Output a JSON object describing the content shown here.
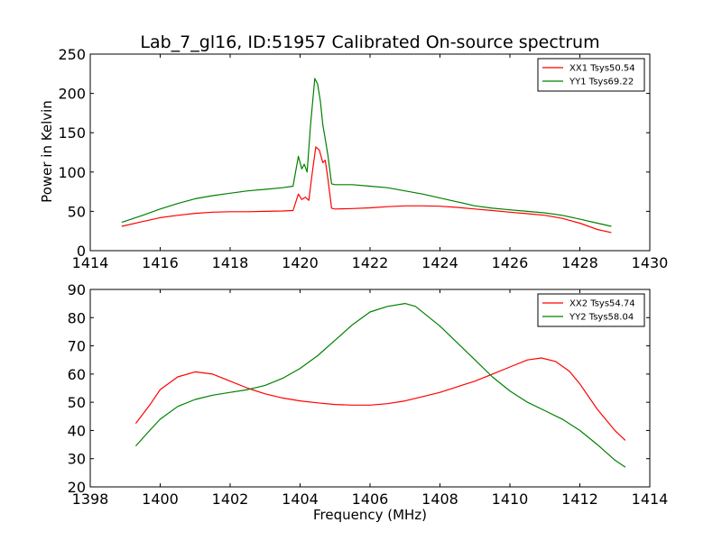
{
  "chart_data": [
    {
      "type": "line",
      "title": "Lab_7_gl16, ID:51957 Calibrated On-source spectrum",
      "xlabel": "",
      "ylabel": "Power in Kelvin",
      "xlim": [
        1414,
        1430
      ],
      "ylim": [
        0,
        250
      ],
      "xticks": [
        1414,
        1416,
        1418,
        1420,
        1422,
        1424,
        1426,
        1428,
        1430
      ],
      "yticks": [
        0,
        50,
        100,
        150,
        200,
        250
      ],
      "grid": false,
      "legend_position": "top-right",
      "series": [
        {
          "name": "XX1 Tsys50.54",
          "color": "#ff0000",
          "points": [
            [
              1414.9,
              31
            ],
            [
              1415.5,
              37
            ],
            [
              1416,
              42
            ],
            [
              1416.5,
              45
            ],
            [
              1417,
              47.5
            ],
            [
              1417.5,
              49
            ],
            [
              1418,
              49.5
            ],
            [
              1418.5,
              49.5
            ],
            [
              1419,
              50
            ],
            [
              1419.5,
              50.5
            ],
            [
              1419.8,
              51
            ],
            [
              1419.95,
              72
            ],
            [
              1420.05,
              65
            ],
            [
              1420.15,
              68
            ],
            [
              1420.25,
              64
            ],
            [
              1420.35,
              100
            ],
            [
              1420.45,
              132
            ],
            [
              1420.55,
              128
            ],
            [
              1420.65,
              112
            ],
            [
              1420.72,
              115
            ],
            [
              1420.8,
              90
            ],
            [
              1420.9,
              54
            ],
            [
              1421,
              53
            ],
            [
              1421.5,
              53.5
            ],
            [
              1422,
              54.5
            ],
            [
              1422.5,
              56
            ],
            [
              1423,
              57
            ],
            [
              1423.5,
              57
            ],
            [
              1424,
              56.5
            ],
            [
              1424.5,
              55
            ],
            [
              1425,
              53
            ],
            [
              1425.5,
              51
            ],
            [
              1426,
              49
            ],
            [
              1426.5,
              47
            ],
            [
              1427,
              45
            ],
            [
              1427.5,
              41
            ],
            [
              1428,
              35
            ],
            [
              1428.5,
              27
            ],
            [
              1428.9,
              23
            ]
          ]
        },
        {
          "name": "YY1 Tsys69.22",
          "color": "#008000",
          "points": [
            [
              1414.9,
              36
            ],
            [
              1415.5,
              45
            ],
            [
              1416,
              53
            ],
            [
              1416.5,
              60
            ],
            [
              1417,
              66
            ],
            [
              1417.5,
              70
            ],
            [
              1418,
              73
            ],
            [
              1418.5,
              76
            ],
            [
              1419,
              78
            ],
            [
              1419.5,
              80
            ],
            [
              1419.8,
              82
            ],
            [
              1419.95,
              120
            ],
            [
              1420.05,
              104
            ],
            [
              1420.12,
              110
            ],
            [
              1420.2,
              100
            ],
            [
              1420.3,
              160
            ],
            [
              1420.42,
              219
            ],
            [
              1420.5,
              212
            ],
            [
              1420.58,
              190
            ],
            [
              1420.65,
              160
            ],
            [
              1420.72,
              142
            ],
            [
              1420.8,
              120
            ],
            [
              1420.9,
              85
            ],
            [
              1421,
              84
            ],
            [
              1421.5,
              84
            ],
            [
              1422,
              82
            ],
            [
              1422.5,
              80
            ],
            [
              1423,
              76
            ],
            [
              1423.5,
              72
            ],
            [
              1424,
              67
            ],
            [
              1424.5,
              62
            ],
            [
              1425,
              57
            ],
            [
              1425.5,
              54
            ],
            [
              1426,
              52
            ],
            [
              1426.5,
              50
            ],
            [
              1427,
              48
            ],
            [
              1427.5,
              45
            ],
            [
              1428,
              40
            ],
            [
              1428.5,
              35
            ],
            [
              1428.9,
              31
            ]
          ]
        }
      ]
    },
    {
      "type": "line",
      "title": "",
      "xlabel": "Frequency (MHz)",
      "ylabel": "",
      "xlim": [
        1398,
        1414
      ],
      "ylim": [
        20,
        90
      ],
      "xticks": [
        1398,
        1400,
        1402,
        1404,
        1406,
        1408,
        1410,
        1412,
        1414
      ],
      "yticks": [
        20,
        30,
        40,
        50,
        60,
        70,
        80,
        90
      ],
      "grid": false,
      "legend_position": "top-right",
      "series": [
        {
          "name": "XX2 Tsys54.74",
          "color": "#ff0000",
          "points": [
            [
              1399.3,
              42.5
            ],
            [
              1399.7,
              49
            ],
            [
              1400,
              54.5
            ],
            [
              1400.5,
              59
            ],
            [
              1401,
              60.8
            ],
            [
              1401.5,
              60
            ],
            [
              1402,
              57.5
            ],
            [
              1402.5,
              55
            ],
            [
              1403,
              53
            ],
            [
              1403.5,
              51.5
            ],
            [
              1404,
              50.5
            ],
            [
              1404.5,
              49.8
            ],
            [
              1405,
              49.2
            ],
            [
              1405.5,
              49
            ],
            [
              1406,
              49
            ],
            [
              1406.5,
              49.5
            ],
            [
              1407,
              50.5
            ],
            [
              1407.5,
              52
            ],
            [
              1408,
              53.5
            ],
            [
              1408.5,
              55.5
            ],
            [
              1409,
              57.5
            ],
            [
              1409.5,
              60
            ],
            [
              1410,
              62.5
            ],
            [
              1410.5,
              65
            ],
            [
              1410.9,
              65.7
            ],
            [
              1411.3,
              64.5
            ],
            [
              1411.7,
              61
            ],
            [
              1412,
              56.5
            ],
            [
              1412.5,
              47.5
            ],
            [
              1413,
              40
            ],
            [
              1413.3,
              36.5
            ]
          ]
        },
        {
          "name": "YY2 Tsys58.04",
          "color": "#008000",
          "points": [
            [
              1399.3,
              34.5
            ],
            [
              1399.7,
              40
            ],
            [
              1400,
              44
            ],
            [
              1400.5,
              48.5
            ],
            [
              1401,
              51
            ],
            [
              1401.5,
              52.5
            ],
            [
              1402,
              53.5
            ],
            [
              1402.5,
              54.5
            ],
            [
              1403,
              56
            ],
            [
              1403.5,
              58.5
            ],
            [
              1404,
              62
            ],
            [
              1404.5,
              66.5
            ],
            [
              1405,
              72
            ],
            [
              1405.5,
              77.5
            ],
            [
              1406,
              82
            ],
            [
              1406.5,
              84
            ],
            [
              1407,
              85
            ],
            [
              1407.3,
              84
            ],
            [
              1407.7,
              80
            ],
            [
              1408,
              77
            ],
            [
              1408.5,
              71
            ],
            [
              1409,
              65
            ],
            [
              1409.5,
              59
            ],
            [
              1410,
              54
            ],
            [
              1410.5,
              50
            ],
            [
              1411,
              47
            ],
            [
              1411.5,
              44
            ],
            [
              1412,
              40
            ],
            [
              1412.5,
              35
            ],
            [
              1413,
              29.5
            ],
            [
              1413.3,
              27
            ]
          ]
        }
      ]
    }
  ]
}
